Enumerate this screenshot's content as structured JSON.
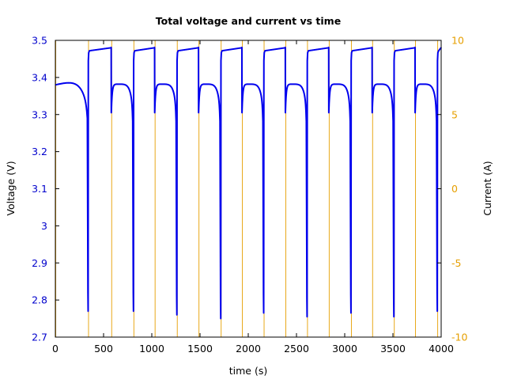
{
  "chart_data": {
    "type": "line",
    "title": "Total voltage and current vs time",
    "xlabel": "time (s)",
    "ylabel": "Voltage (V)",
    "y2label": "Current (A)",
    "xlim": [
      0,
      4000
    ],
    "ylim": [
      2.7,
      3.5
    ],
    "y2lim": [
      -10,
      10
    ],
    "x_ticks": [
      "0",
      "500",
      "1000",
      "1500",
      "2000",
      "2500",
      "3000",
      "3500",
      "4000"
    ],
    "y_ticks": [
      "2.7",
      "2.8",
      "2.9",
      "3",
      "3.1",
      "3.2",
      "3.3",
      "3.4",
      "3.5"
    ],
    "y2_ticks": [
      "-10",
      "-5",
      "0",
      "5",
      "10"
    ],
    "grid": false,
    "colors": {
      "voltage": "#0000ee",
      "current": "#e69f00",
      "axis_text_left": "#0000cc",
      "axis_text_right": "#e69f00"
    },
    "series": [
      {
        "axis": "left",
        "cycles": [
          {
            "discharge_start": 0,
            "min_time": 340,
            "min_v": 2.77,
            "charge_end": 580
          },
          {
            "discharge_start": 580,
            "min_time": 810,
            "min_v": 2.77,
            "charge_end": 1030
          },
          {
            "discharge_start": 1030,
            "min_time": 1260,
            "min_v": 2.76,
            "charge_end": 1485
          },
          {
            "discharge_start": 1485,
            "min_time": 1715,
            "min_v": 2.75,
            "charge_end": 1935
          },
          {
            "discharge_start": 1935,
            "min_time": 2160,
            "min_v": 2.765,
            "charge_end": 2385
          },
          {
            "discharge_start": 2385,
            "min_time": 2610,
            "min_v": 2.755,
            "charge_end": 2835
          },
          {
            "discharge_start": 2835,
            "min_time": 3065,
            "min_v": 2.765,
            "charge_end": 3285
          },
          {
            "discharge_start": 3285,
            "min_time": 3510,
            "min_v": 2.755,
            "charge_end": 3730
          },
          {
            "discharge_start": 3730,
            "min_time": 3960,
            "min_v": 2.77,
            "charge_end": 4000
          }
        ],
        "rest_voltage": 3.38,
        "charge_voltage": 3.475
      },
      {
        "axis": "right",
        "spike_times": [
          0,
          340,
          580,
          810,
          1030,
          1260,
          1485,
          1715,
          1935,
          2160,
          2385,
          2610,
          2835,
          3065,
          3285,
          3510,
          3730,
          3960
        ],
        "spike_high": 10,
        "spike_low": -10
      }
    ]
  }
}
